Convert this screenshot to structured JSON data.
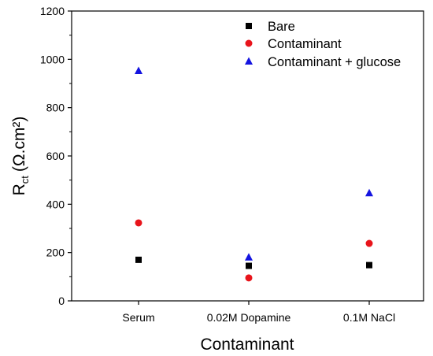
{
  "chart_data": {
    "type": "scatter",
    "categories": [
      "Serum",
      "0.02M Dopamine",
      "0.1M NaCl"
    ],
    "series": [
      {
        "name": "Bare",
        "marker": "square",
        "color": "#000000",
        "values": [
          170,
          145,
          148
        ]
      },
      {
        "name": "Contaminant",
        "marker": "circle",
        "color": "#e8141b",
        "values": [
          323,
          95,
          238
        ]
      },
      {
        "name": "Contaminant + glucose",
        "marker": "triangle",
        "color": "#1414e0",
        "values": [
          952,
          180,
          446
        ]
      }
    ],
    "xlabel": "Contaminant",
    "ylabel": {
      "main": "R",
      "sub": "ct",
      "unit": "(Ω.cm²)"
    },
    "ylim": [
      0,
      1200
    ],
    "yticks": [
      0,
      200,
      400,
      600,
      800,
      1000,
      1200
    ],
    "grid": false,
    "legend_position": "top-right"
  }
}
